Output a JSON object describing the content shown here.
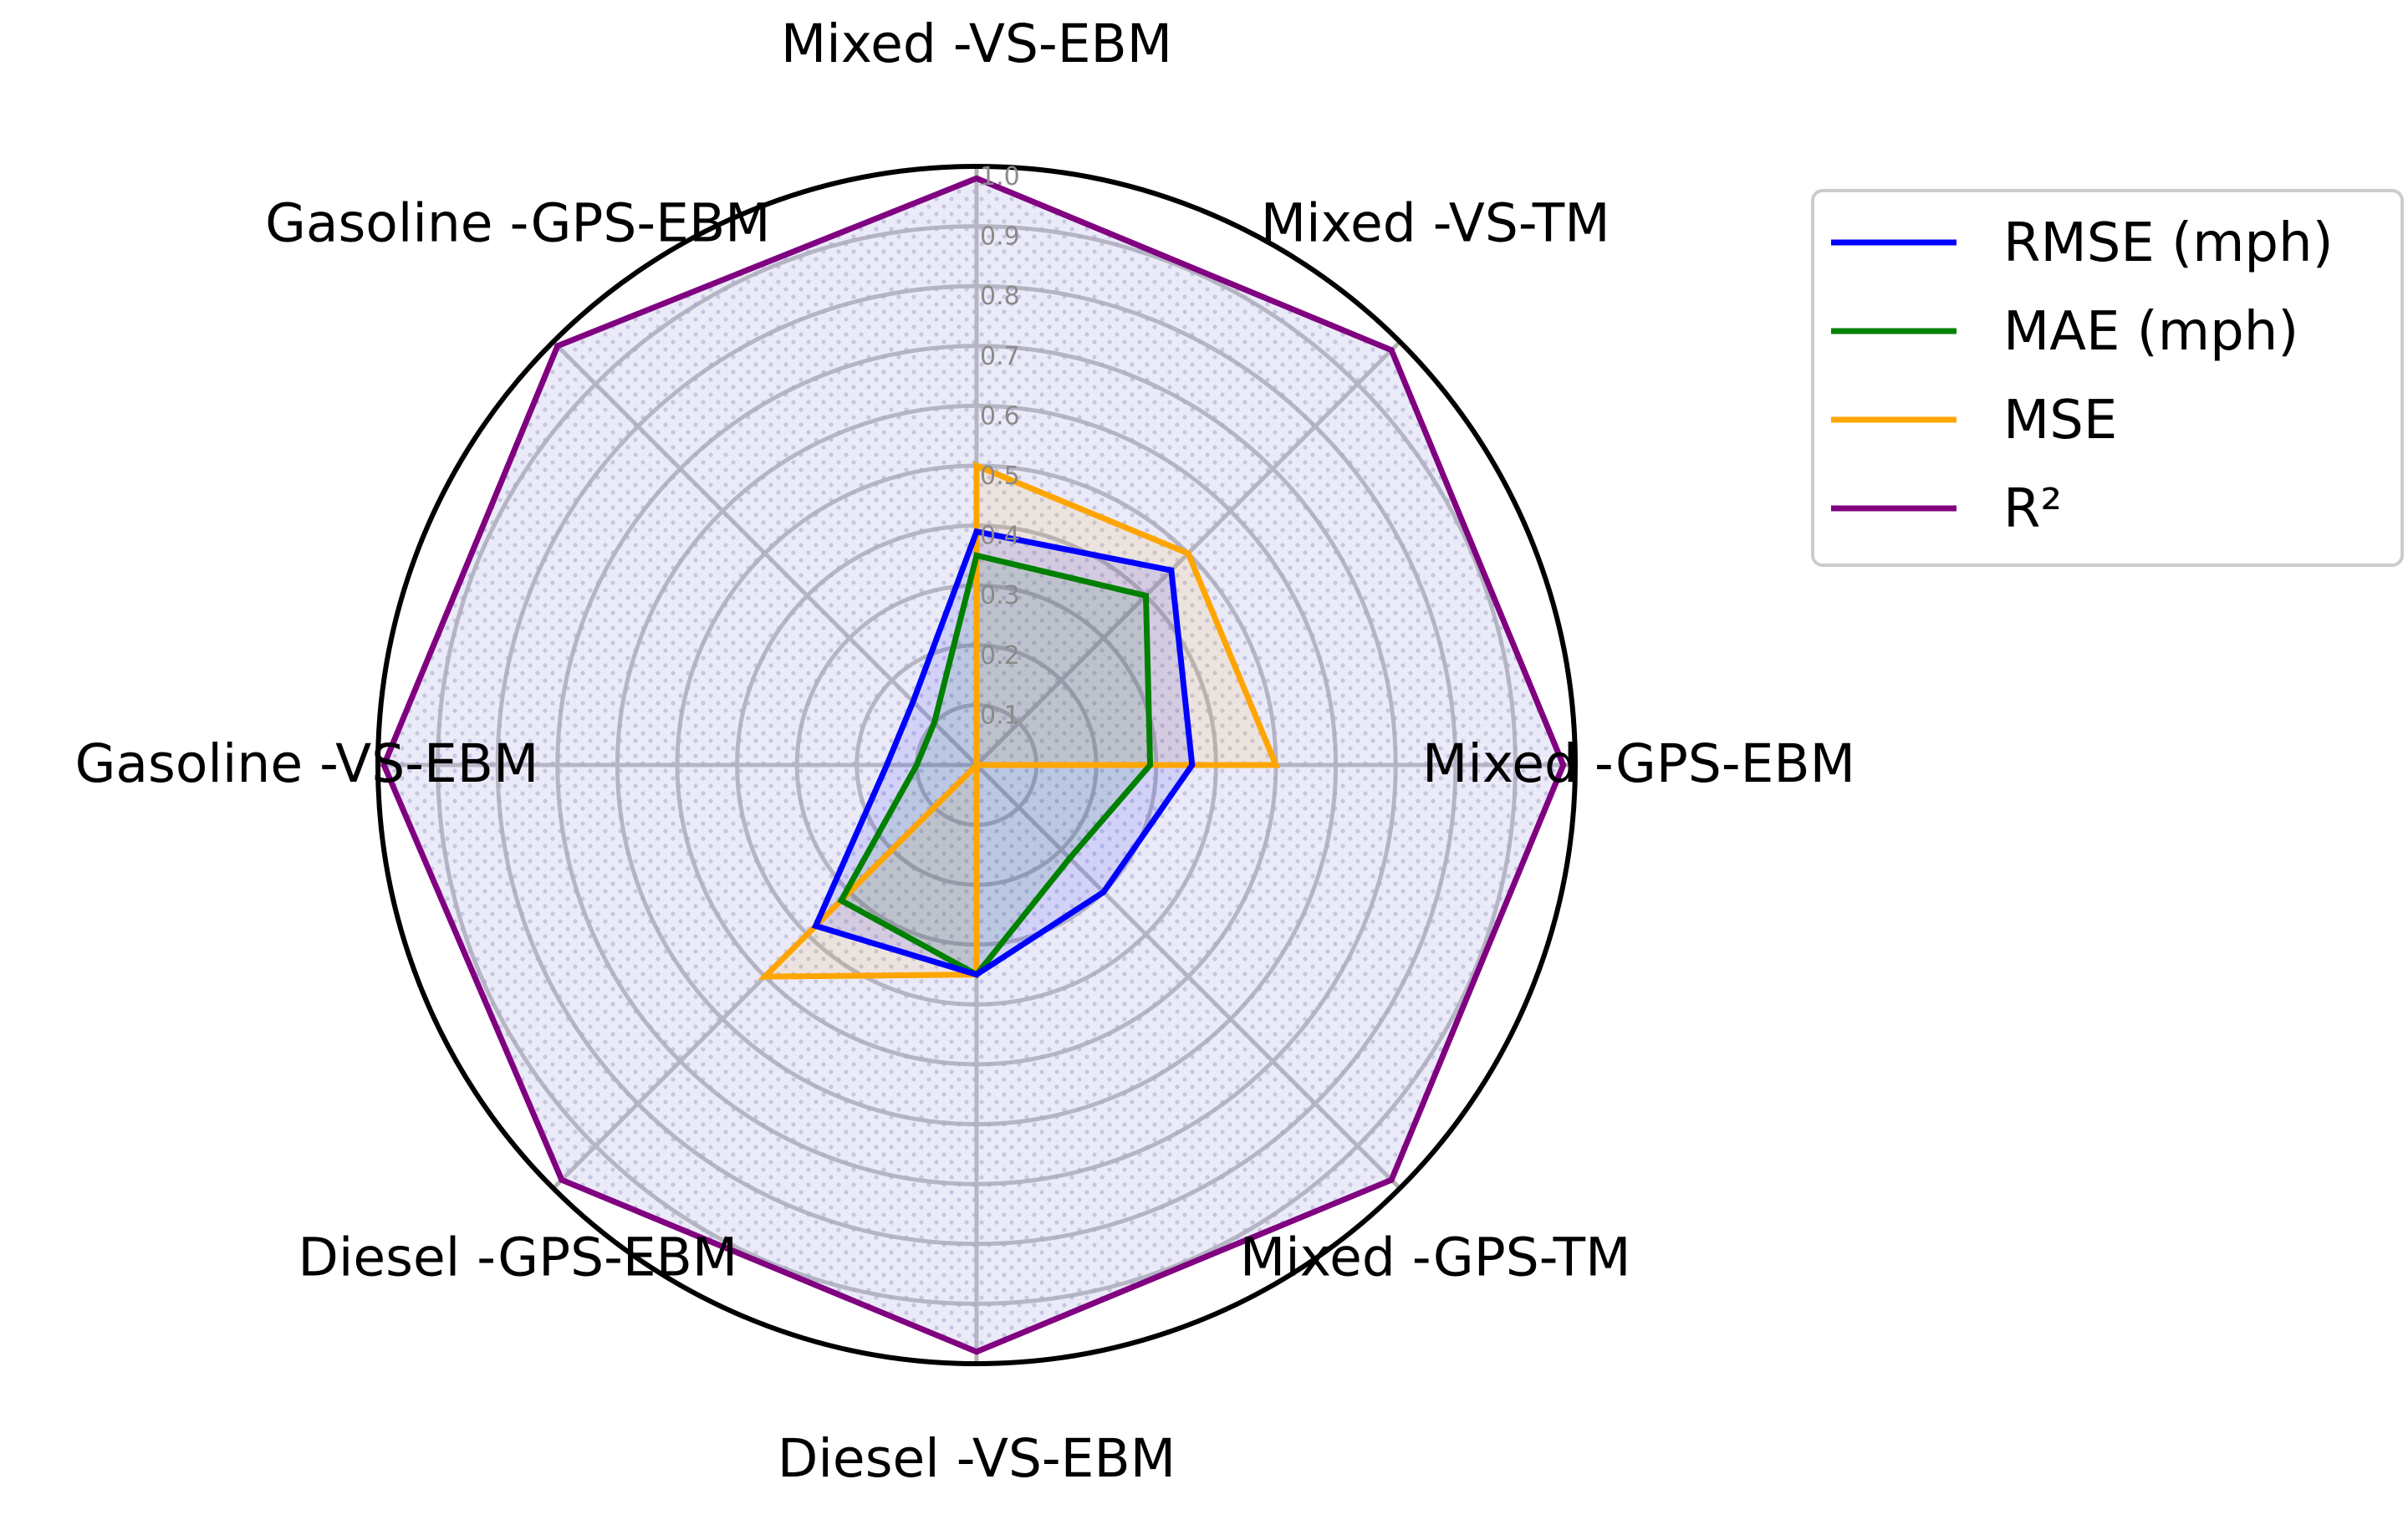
{
  "chart_data": {
    "type": "radar",
    "axes": [
      "Mixed -VS-EBM",
      "Mixed -VS-TM",
      "Mixed -GPS-EBM",
      "Mixed -GPS-TM",
      "Diesel -VS-EBM",
      "Diesel -GPS-EBM",
      "Gasoline -VS-EBM",
      "Gasoline -GPS-EBM"
    ],
    "r_range": [
      0,
      1.0
    ],
    "r_ticks": [
      "0.1",
      "0.2",
      "0.3",
      "0.4",
      "0.5",
      "0.6",
      "0.7",
      "0.8",
      "0.9",
      "1.0"
    ],
    "grid": true,
    "legend_position": "right",
    "series": [
      {
        "name": "RMSE (mph)",
        "color": "#0000ff",
        "fill": "#0000ff",
        "fill_opacity": 0.1,
        "values": [
          0.39,
          0.46,
          0.36,
          0.3,
          0.35,
          0.38,
          0.15,
          0.15
        ]
      },
      {
        "name": "MAE (mph)",
        "color": "#008000",
        "fill": "#008000",
        "fill_opacity": 0.1,
        "values": [
          0.35,
          0.4,
          0.29,
          0.22,
          0.35,
          0.32,
          0.1,
          0.1
        ]
      },
      {
        "name": "MSE",
        "color": "#ffa500",
        "fill": "#ffa500",
        "fill_opacity": 0.1,
        "values": [
          0.5,
          0.5,
          0.5,
          0.0,
          0.35,
          0.5,
          0.0,
          0.0
        ]
      },
      {
        "name": "R²",
        "color": "#800080",
        "fill": "#b8b8e8",
        "fill_opacity": 0.3,
        "values": [
          0.98,
          0.98,
          0.98,
          0.98,
          0.98,
          0.98,
          0.99,
          0.99
        ]
      }
    ]
  }
}
